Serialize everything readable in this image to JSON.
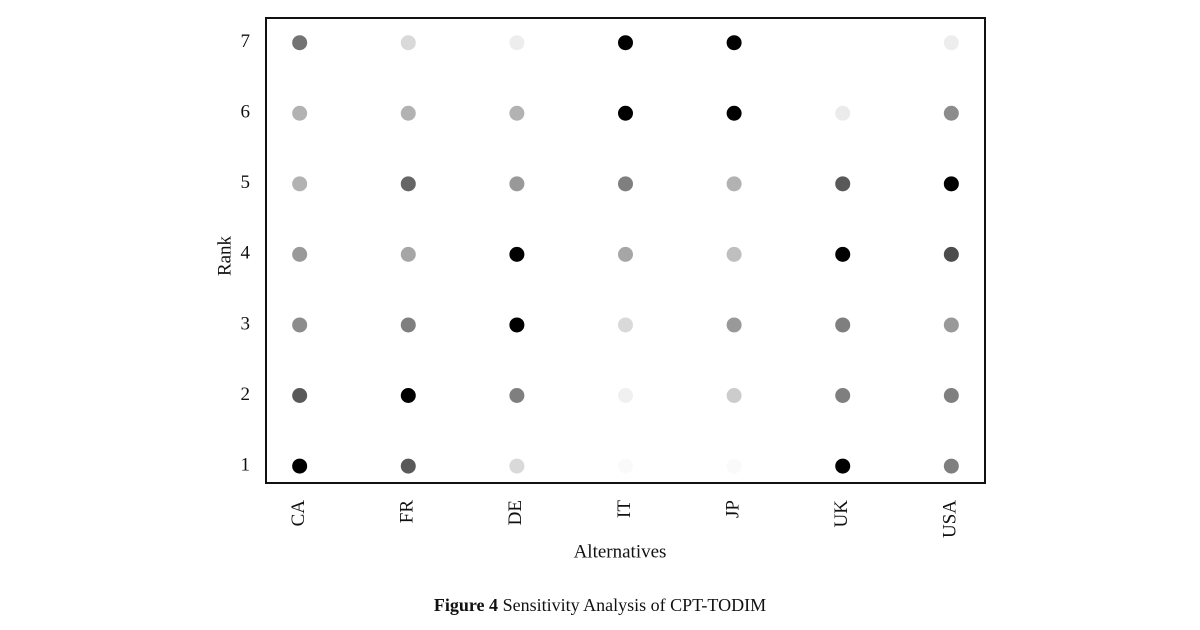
{
  "chart_data": {
    "type": "dotmatrix",
    "x_label": "Alternatives",
    "y_label": "Rank",
    "categories": [
      "CA",
      "FR",
      "DE",
      "IT",
      "JP",
      "UK",
      "USA"
    ],
    "y": [
      1,
      2,
      3,
      4,
      5,
      6,
      7
    ],
    "values": [
      [
        1,
        0.65,
        0.15,
        0.02,
        0.02,
        1,
        0.5
      ],
      [
        0.65,
        1,
        0.5,
        0.06,
        0.2,
        0.5,
        0.5
      ],
      [
        0.45,
        0.5,
        1,
        0.15,
        0.4,
        0.5,
        0.4
      ],
      [
        0.4,
        0.35,
        1,
        0.35,
        0.25,
        1,
        0.7
      ],
      [
        0.3,
        0.6,
        0.4,
        0.5,
        0.3,
        0.65,
        1
      ],
      [
        0.3,
        0.3,
        0.3,
        1,
        1,
        0.08,
        0.45
      ],
      [
        0.55,
        0.15,
        0.07,
        1,
        1,
        0,
        0.07
      ]
    ],
    "color": "#000000",
    "ylim": [
      0.76,
      7.35
    ],
    "yticks": [
      1,
      2,
      3,
      4,
      5,
      6,
      7
    ],
    "caption_label": "Figure 4",
    "caption": "Sensitivity Analysis of CPT-TODIM"
  }
}
